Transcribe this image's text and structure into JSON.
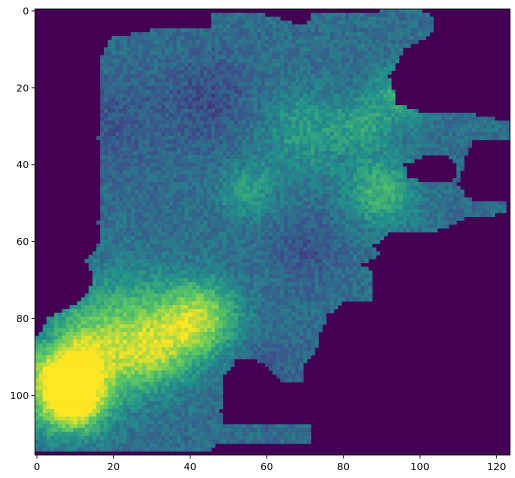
{
  "chart_data": {
    "type": "heatmap",
    "title": "",
    "xlabel": "",
    "ylabel": "",
    "grid": false,
    "colormap": "viridis",
    "background_color": "#440154",
    "grid_size": {
      "cols": 124,
      "rows": 116
    },
    "xlim": [
      -0.5,
      123.5
    ],
    "ylim": [
      115.5,
      -0.5
    ],
    "x_ticks": [
      0,
      20,
      40,
      60,
      80,
      100,
      120
    ],
    "y_ticks": [
      0,
      20,
      40,
      60,
      80,
      100
    ],
    "x_tick_labels": [
      "0",
      "20",
      "40",
      "60",
      "80",
      "100",
      "120"
    ],
    "y_tick_labels": [
      "0",
      "20",
      "40",
      "60",
      "80",
      "100"
    ],
    "region_outline": [
      [
        46,
        1
      ],
      [
        60,
        1
      ],
      [
        70,
        4
      ],
      [
        72,
        1
      ],
      [
        83,
        1
      ],
      [
        90,
        0
      ],
      [
        101,
        0
      ],
      [
        104,
        2
      ],
      [
        103,
        6
      ],
      [
        96,
        10
      ],
      [
        92,
        17
      ],
      [
        94,
        24
      ],
      [
        103,
        27
      ],
      [
        115,
        27
      ],
      [
        124,
        29
      ],
      [
        124,
        33
      ],
      [
        114,
        34
      ],
      [
        112,
        38
      ],
      [
        110,
        45
      ],
      [
        112,
        48
      ],
      [
        116,
        50
      ],
      [
        122,
        49
      ],
      [
        123,
        52
      ],
      [
        116,
        54
      ],
      [
        112,
        54
      ],
      [
        105,
        57
      ],
      [
        97,
        58
      ],
      [
        92,
        58
      ],
      [
        88,
        61
      ],
      [
        90,
        63
      ],
      [
        85,
        66
      ],
      [
        88,
        68
      ],
      [
        88,
        75
      ],
      [
        80,
        76
      ],
      [
        76,
        79
      ],
      [
        74,
        84
      ],
      [
        73,
        88
      ],
      [
        70,
        92
      ],
      [
        70,
        97
      ],
      [
        65,
        97
      ],
      [
        61,
        93
      ],
      [
        56,
        90
      ],
      [
        52,
        91
      ],
      [
        49,
        95
      ],
      [
        48,
        104
      ],
      [
        49,
        107
      ],
      [
        55,
        108
      ],
      [
        68,
        108
      ],
      [
        72,
        107
      ],
      [
        72,
        112
      ],
      [
        66,
        113
      ],
      [
        53,
        113
      ],
      [
        48,
        112
      ],
      [
        46,
        114
      ],
      [
        45,
        115
      ],
      [
        0,
        115
      ],
      [
        0,
        85
      ],
      [
        3,
        80
      ],
      [
        9,
        77
      ],
      [
        13,
        74
      ],
      [
        15,
        70
      ],
      [
        13,
        65
      ],
      [
        15,
        63
      ],
      [
        17,
        58
      ],
      [
        16,
        55
      ],
      [
        17,
        50
      ],
      [
        17,
        42
      ],
      [
        16,
        33
      ],
      [
        17,
        23
      ],
      [
        17,
        12
      ],
      [
        19,
        8
      ],
      [
        20,
        7
      ],
      [
        30,
        5
      ],
      [
        46,
        5
      ]
    ],
    "hole_outlines": [
      [
        [
          96,
          40
        ],
        [
          101,
          38
        ],
        [
          107,
          37
        ],
        [
          110,
          40
        ],
        [
          109,
          44
        ],
        [
          106,
          45
        ],
        [
          103,
          45
        ],
        [
          100,
          44
        ],
        [
          97,
          43
        ]
      ]
    ],
    "value_range": [
      0,
      1
    ],
    "field": {
      "base": 0.36,
      "blobs": [
        [
          6,
          96,
          8,
          0.55
        ],
        [
          10,
          102,
          5,
          0.45
        ],
        [
          40,
          82,
          7,
          0.4
        ],
        [
          45,
          78,
          6,
          0.2
        ],
        [
          25,
          80,
          9,
          0.25
        ],
        [
          30,
          90,
          6,
          0.3
        ],
        [
          14,
          90,
          9,
          0.35
        ],
        [
          90,
          47,
          6,
          0.3
        ],
        [
          95,
          22,
          5,
          0.25
        ],
        [
          55,
          47,
          5,
          0.2
        ],
        [
          70,
          32,
          8,
          0.18
        ],
        [
          85,
          30,
          5,
          0.18
        ],
        [
          3,
          86,
          4,
          -0.15
        ],
        [
          45,
          23,
          8,
          -0.12
        ],
        [
          20,
          30,
          10,
          -0.08
        ],
        [
          70,
          62,
          6,
          -0.1
        ],
        [
          60,
          95,
          7,
          -0.08
        ]
      ],
      "noise_amplitude": 0.16,
      "noise_seed": 7
    }
  }
}
